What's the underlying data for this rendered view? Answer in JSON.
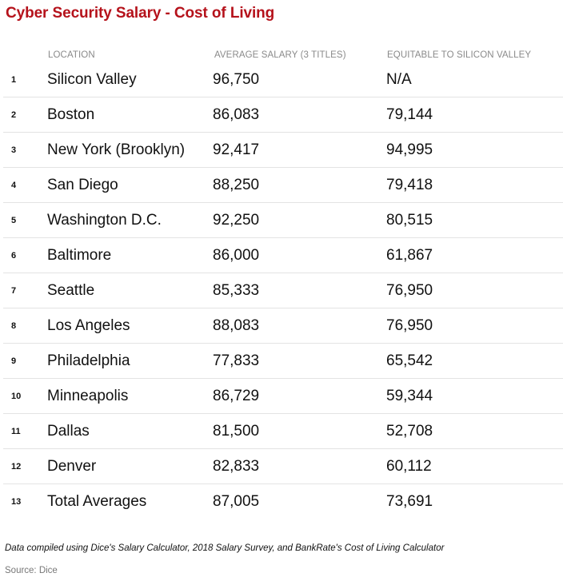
{
  "title": "Cyber Security Salary - Cost of Living",
  "columns": {
    "location": "LOCATION",
    "average_salary": "AVERAGE SALARY (3 TITLES)",
    "equitable": "EQUITABLE TO SILICON VALLEY"
  },
  "rows": [
    {
      "rank": "1",
      "location": "Silicon Valley",
      "average": "96,750",
      "equitable": "N/A"
    },
    {
      "rank": "2",
      "location": "Boston",
      "average": "86,083",
      "equitable": "79,144"
    },
    {
      "rank": "3",
      "location": "New York (Brooklyn)",
      "average": "92,417",
      "equitable": "94,995"
    },
    {
      "rank": "4",
      "location": "San Diego",
      "average": "88,250",
      "equitable": "79,418"
    },
    {
      "rank": "5",
      "location": "Washington D.C.",
      "average": "92,250",
      "equitable": "80,515"
    },
    {
      "rank": "6",
      "location": "Baltimore",
      "average": "86,000",
      "equitable": "61,867"
    },
    {
      "rank": "7",
      "location": "Seattle",
      "average": "85,333",
      "equitable": "76,950"
    },
    {
      "rank": "8",
      "location": "Los Angeles",
      "average": "88,083",
      "equitable": "76,950"
    },
    {
      "rank": "9",
      "location": "Philadelphia",
      "average": "77,833",
      "equitable": "65,542"
    },
    {
      "rank": "10",
      "location": "Minneapolis",
      "average": "86,729",
      "equitable": "59,344"
    },
    {
      "rank": "11",
      "location": "Dallas",
      "average": "81,500",
      "equitable": "52,708"
    },
    {
      "rank": "12",
      "location": "Denver",
      "average": "82,833",
      "equitable": "60,112"
    },
    {
      "rank": "13",
      "location": "Total Averages",
      "average": "87,005",
      "equitable": "73,691"
    }
  ],
  "note": "Data compiled using Dice's Salary Calculator, 2018 Salary Survey, and BankRate's Cost of Living Calculator",
  "source": "Source: Dice",
  "colors": {
    "title": "#b5121b",
    "header_text": "#8a8a8a",
    "rule": "#e3e3e3"
  }
}
